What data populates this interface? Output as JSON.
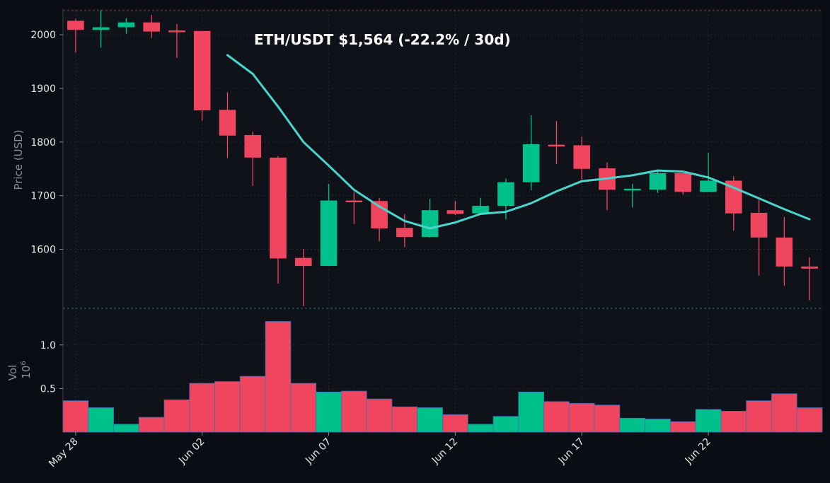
{
  "chart_data": {
    "type": "candlestick",
    "title": "ETH/USDT   $1,564   (-22.2% / 30d)",
    "price_panel": {
      "ylabel": "Price (USD)",
      "ylim": [
        1490,
        2045
      ],
      "y_ticks": [
        1600,
        1700,
        1800,
        1900,
        2000
      ],
      "grid": true
    },
    "volume_panel": {
      "ylabel": "Vol",
      "scale_label": "10",
      "scale_exponent": "6",
      "ylim": [
        0,
        1.25
      ],
      "y_ticks": [
        0.5,
        1.0
      ],
      "y_tick_labels": [
        "0.5",
        "1.0"
      ]
    },
    "x_ticks": [
      {
        "index": 0,
        "label": "May 28"
      },
      {
        "index": 5,
        "label": "Jun 02"
      },
      {
        "index": 10,
        "label": "Jun 07"
      },
      {
        "index": 15,
        "label": "Jun 12"
      },
      {
        "index": 20,
        "label": "Jun 17"
      },
      {
        "index": 25,
        "label": "Jun 22"
      }
    ],
    "candles": [
      {
        "date": "May 28",
        "open": 2026,
        "high": 2030,
        "low": 1967,
        "close": 2009,
        "volume": 0.36
      },
      {
        "date": "May 29",
        "open": 2009,
        "high": 2046,
        "low": 1976,
        "close": 2014,
        "volume": 0.28
      },
      {
        "date": "May 30",
        "open": 2014,
        "high": 2031,
        "low": 2002,
        "close": 2023,
        "volume": 0.09
      },
      {
        "date": "May 31",
        "open": 2023,
        "high": 2037,
        "low": 1994,
        "close": 2006,
        "volume": 0.17
      },
      {
        "date": "Jun 01",
        "open": 2008,
        "high": 2020,
        "low": 1957,
        "close": 2006,
        "volume": 0.37
      },
      {
        "date": "Jun 02",
        "open": 2007,
        "high": 2007,
        "low": 1840,
        "close": 1859,
        "volume": 0.56
      },
      {
        "date": "Jun 03",
        "open": 1860,
        "high": 1893,
        "low": 1770,
        "close": 1812,
        "volume": 0.58
      },
      {
        "date": "Jun 04",
        "open": 1813,
        "high": 1819,
        "low": 1718,
        "close": 1771,
        "volume": 0.64
      },
      {
        "date": "Jun 05",
        "open": 1771,
        "high": 1774,
        "low": 1536,
        "close": 1583,
        "volume": 1.27
      },
      {
        "date": "Jun 06",
        "open": 1584,
        "high": 1601,
        "low": 1494,
        "close": 1569,
        "volume": 0.56
      },
      {
        "date": "Jun 07",
        "open": 1569,
        "high": 1722,
        "low": 1569,
        "close": 1691,
        "volume": 0.46
      },
      {
        "date": "Jun 08",
        "open": 1691,
        "high": 1707,
        "low": 1647,
        "close": 1689,
        "volume": 0.47
      },
      {
        "date": "Jun 09",
        "open": 1690,
        "high": 1696,
        "low": 1615,
        "close": 1639,
        "volume": 0.38
      },
      {
        "date": "Jun 10",
        "open": 1640,
        "high": 1666,
        "low": 1604,
        "close": 1623,
        "volume": 0.29
      },
      {
        "date": "Jun 11",
        "open": 1623,
        "high": 1694,
        "low": 1622,
        "close": 1673,
        "volume": 0.28
      },
      {
        "date": "Jun 12",
        "open": 1673,
        "high": 1690,
        "low": 1664,
        "close": 1666,
        "volume": 0.2
      },
      {
        "date": "Jun 13",
        "open": 1667,
        "high": 1696,
        "low": 1664,
        "close": 1681,
        "volume": 0.09
      },
      {
        "date": "Jun 14",
        "open": 1681,
        "high": 1732,
        "low": 1656,
        "close": 1725,
        "volume": 0.18
      },
      {
        "date": "Jun 15",
        "open": 1725,
        "high": 1850,
        "low": 1710,
        "close": 1796,
        "volume": 0.46
      },
      {
        "date": "Jun 16",
        "open": 1795,
        "high": 1839,
        "low": 1759,
        "close": 1793,
        "volume": 0.35
      },
      {
        "date": "Jun 17",
        "open": 1794,
        "high": 1810,
        "low": 1730,
        "close": 1750,
        "volume": 0.33
      },
      {
        "date": "Jun 18",
        "open": 1751,
        "high": 1762,
        "low": 1673,
        "close": 1711,
        "volume": 0.31
      },
      {
        "date": "Jun 19",
        "open": 1711,
        "high": 1722,
        "low": 1678,
        "close": 1713,
        "volume": 0.16
      },
      {
        "date": "Jun 20",
        "open": 1711,
        "high": 1747,
        "low": 1705,
        "close": 1742,
        "volume": 0.15
      },
      {
        "date": "Jun 21",
        "open": 1742,
        "high": 1742,
        "low": 1702,
        "close": 1707,
        "volume": 0.12
      },
      {
        "date": "Jun 22",
        "open": 1707,
        "high": 1780,
        "low": 1707,
        "close": 1728,
        "volume": 0.26
      },
      {
        "date": "Jun 23",
        "open": 1728,
        "high": 1736,
        "low": 1635,
        "close": 1667,
        "volume": 0.24
      },
      {
        "date": "Jun 24",
        "open": 1668,
        "high": 1693,
        "low": 1551,
        "close": 1622,
        "volume": 0.36
      },
      {
        "date": "Jun 25",
        "open": 1622,
        "high": 1660,
        "low": 1532,
        "close": 1568,
        "volume": 0.44
      },
      {
        "date": "Jun 26",
        "open": 1568,
        "high": 1585,
        "low": 1505,
        "close": 1564,
        "volume": 0.28
      }
    ],
    "moving_average": {
      "start_index": 6,
      "values": [
        1962,
        1927,
        1866,
        1800,
        1756,
        1711,
        1680,
        1653,
        1639,
        1650,
        1666,
        1670,
        1686,
        1708,
        1727,
        1732,
        1738,
        1747,
        1745,
        1734,
        1715,
        1695,
        1675,
        1656
      ]
    },
    "colors": {
      "up": "#00c08b",
      "down": "#f0455e",
      "moving_average": "#48d6cc",
      "grid": "#2b2f38",
      "panel_background": "#10121a",
      "page_background": "#0b0d14",
      "volume_edge": "#3f6fb8"
    }
  }
}
